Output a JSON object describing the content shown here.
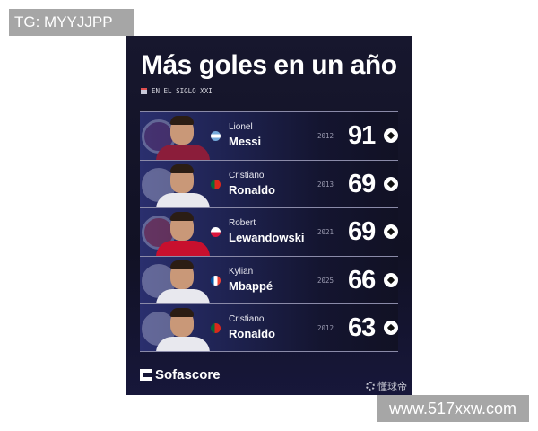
{
  "watermark_top": "TG: MYYJJPP",
  "watermark_bottom": "www.517xxw.com",
  "title": "Más goles en un año",
  "subtitle": "EN EL SIGLO XXI",
  "players": [
    {
      "first": "Lionel",
      "last": "Messi",
      "year": "2012",
      "goals": "91",
      "flag": "argentina",
      "shirt": "#8b1d3a",
      "crest": "#7a3a7a"
    },
    {
      "first": "Cristiano",
      "last": "Ronaldo",
      "year": "2013",
      "goals": "69",
      "flag": "portugal",
      "shirt": "#e8e8ee",
      "crest": "#d0d4ee"
    },
    {
      "first": "Robert",
      "last": "Lewandowski",
      "year": "2021",
      "goals": "69",
      "flag": "poland",
      "shirt": "#c8102e",
      "crest": "#d04050"
    },
    {
      "first": "Kylian",
      "last": "Mbappé",
      "year": "2025",
      "goals": "66",
      "flag": "france",
      "shirt": "#e8e8ee",
      "crest": "#d0d4ee"
    },
    {
      "first": "Cristiano",
      "last": "Ronaldo",
      "year": "2012",
      "goals": "63",
      "flag": "portugal",
      "shirt": "#e8e8ee",
      "crest": "#d0d4ee"
    }
  ],
  "brand": "Sofascore",
  "source_watermark": "懂球帝"
}
